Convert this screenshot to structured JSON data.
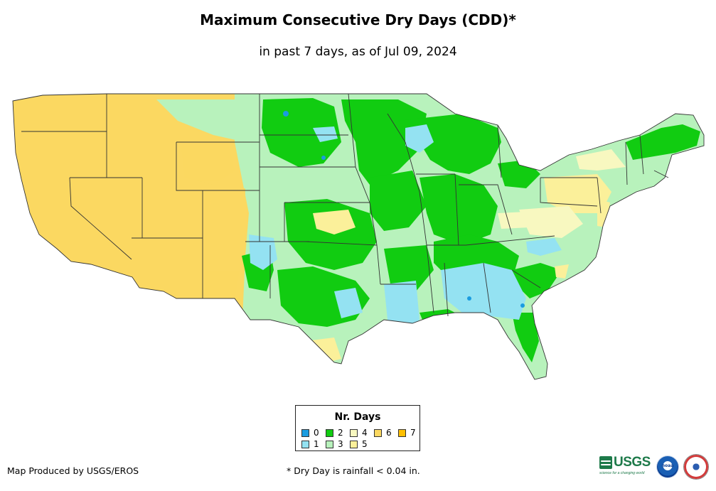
{
  "title": "Maximum Consecutive Dry Days (CDD)*",
  "subtitle": "in past 7 days, as of Jul 09, 2024",
  "legend": {
    "title": "Nr. Days",
    "items": [
      {
        "label": "0",
        "color": "#1a9ce0"
      },
      {
        "label": "2",
        "color": "#11cc11"
      },
      {
        "label": "4",
        "color": "#f8f8c0"
      },
      {
        "label": "6",
        "color": "#fbd861"
      },
      {
        "label": "7",
        "color": "#ffc000"
      },
      {
        "label": "1",
        "color": "#94e2f2"
      },
      {
        "label": "3",
        "color": "#b8f2bc"
      },
      {
        "label": "5",
        "color": "#fbf09a"
      }
    ]
  },
  "credit": "Map Produced by USGS/EROS",
  "footnote": "* Dry Day is rainfall < 0.04 in.",
  "logos": {
    "usgs": "USGS",
    "usgs_tagline": "science for a changing world",
    "noaa": "noaa",
    "nws": "National Weather Service"
  },
  "colors": {
    "state_borders": "#333333",
    "day6": "#fbd861",
    "day5": "#fbf09a",
    "day4": "#f8f8c0",
    "day3": "#b8f2bc",
    "day2": "#11cc11",
    "day1": "#94e2f2",
    "day0": "#1a9ce0"
  }
}
